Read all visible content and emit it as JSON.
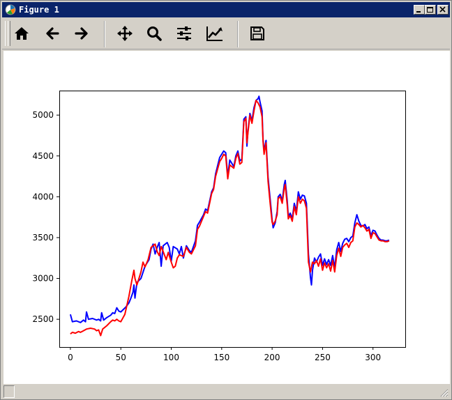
{
  "window": {
    "title": "Figure 1"
  },
  "toolbar": {
    "buttons": [
      {
        "name": "home-button",
        "icon": "home-icon"
      },
      {
        "name": "back-button",
        "icon": "arrow-left-icon"
      },
      {
        "name": "forward-button",
        "icon": "arrow-right-icon"
      },
      {
        "name": "pan-button",
        "icon": "move-icon"
      },
      {
        "name": "zoom-button",
        "icon": "magnifier-icon"
      },
      {
        "name": "configure-subplots-button",
        "icon": "sliders-icon"
      },
      {
        "name": "edit-axis-button",
        "icon": "line-chart-icon"
      },
      {
        "name": "save-button",
        "icon": "floppy-disk-icon"
      }
    ]
  },
  "chart_data": {
    "type": "line",
    "title": "",
    "xlabel": "",
    "ylabel": "",
    "xlim": [
      -11,
      332
    ],
    "ylim": [
      2160,
      5300
    ],
    "xticks": [
      0,
      50,
      100,
      150,
      200,
      250,
      300
    ],
    "yticks": [
      2500,
      3000,
      3500,
      4000,
      4500,
      5000
    ],
    "grid": false,
    "series": [
      {
        "color": "#0000ff",
        "points": [
          [
            0,
            2560
          ],
          [
            2,
            2470
          ],
          [
            6,
            2480
          ],
          [
            10,
            2460
          ],
          [
            13,
            2490
          ],
          [
            15,
            2470
          ],
          [
            16,
            2590
          ],
          [
            18,
            2500
          ],
          [
            22,
            2510
          ],
          [
            26,
            2490
          ],
          [
            28,
            2500
          ],
          [
            30,
            2480
          ],
          [
            31,
            2580
          ],
          [
            33,
            2490
          ],
          [
            36,
            2520
          ],
          [
            40,
            2550
          ],
          [
            42,
            2580
          ],
          [
            44,
            2570
          ],
          [
            46,
            2640
          ],
          [
            48,
            2600
          ],
          [
            50,
            2590
          ],
          [
            55,
            2650
          ],
          [
            58,
            2700
          ],
          [
            60,
            2760
          ],
          [
            62,
            2830
          ],
          [
            63,
            2920
          ],
          [
            64,
            2760
          ],
          [
            66,
            2950
          ],
          [
            70,
            3000
          ],
          [
            74,
            3150
          ],
          [
            78,
            3230
          ],
          [
            80,
            3360
          ],
          [
            82,
            3420
          ],
          [
            84,
            3300
          ],
          [
            86,
            3380
          ],
          [
            88,
            3440
          ],
          [
            90,
            3150
          ],
          [
            92,
            3400
          ],
          [
            96,
            3440
          ],
          [
            98,
            3380
          ],
          [
            100,
            3210
          ],
          [
            102,
            3390
          ],
          [
            106,
            3360
          ],
          [
            108,
            3300
          ],
          [
            110,
            3390
          ],
          [
            112,
            3250
          ],
          [
            115,
            3400
          ],
          [
            118,
            3340
          ],
          [
            120,
            3320
          ],
          [
            124,
            3460
          ],
          [
            126,
            3650
          ],
          [
            128,
            3690
          ],
          [
            132,
            3780
          ],
          [
            134,
            3850
          ],
          [
            136,
            3830
          ],
          [
            140,
            4060
          ],
          [
            142,
            4110
          ],
          [
            144,
            4280
          ],
          [
            146,
            4380
          ],
          [
            148,
            4480
          ],
          [
            150,
            4520
          ],
          [
            152,
            4560
          ],
          [
            154,
            4540
          ],
          [
            156,
            4250
          ],
          [
            158,
            4450
          ],
          [
            160,
            4410
          ],
          [
            162,
            4370
          ],
          [
            164,
            4500
          ],
          [
            166,
            4560
          ],
          [
            168,
            4440
          ],
          [
            170,
            4460
          ],
          [
            172,
            4950
          ],
          [
            174,
            4980
          ],
          [
            175,
            4620
          ],
          [
            176,
            4800
          ],
          [
            178,
            5020
          ],
          [
            180,
            4930
          ],
          [
            182,
            5090
          ],
          [
            184,
            5180
          ],
          [
            186,
            5200
          ],
          [
            187,
            5230
          ],
          [
            188,
            5160
          ],
          [
            190,
            5050
          ],
          [
            191,
            4700
          ],
          [
            192,
            4560
          ],
          [
            194,
            4690
          ],
          [
            196,
            4240
          ],
          [
            198,
            3980
          ],
          [
            199,
            3850
          ],
          [
            200,
            3720
          ],
          [
            201,
            3620
          ],
          [
            203,
            3680
          ],
          [
            205,
            3820
          ],
          [
            206,
            4000
          ],
          [
            208,
            4030
          ],
          [
            210,
            3950
          ],
          [
            212,
            4150
          ],
          [
            213,
            4200
          ],
          [
            215,
            3950
          ],
          [
            216,
            3760
          ],
          [
            218,
            3800
          ],
          [
            220,
            3730
          ],
          [
            222,
            3920
          ],
          [
            224,
            3820
          ],
          [
            226,
            4060
          ],
          [
            228,
            3970
          ],
          [
            230,
            4020
          ],
          [
            232,
            4010
          ],
          [
            234,
            3920
          ],
          [
            236,
            3300
          ],
          [
            238,
            3010
          ],
          [
            239,
            2920
          ],
          [
            240,
            3100
          ],
          [
            242,
            3250
          ],
          [
            244,
            3200
          ],
          [
            246,
            3260
          ],
          [
            248,
            3300
          ],
          [
            250,
            3160
          ],
          [
            252,
            3240
          ],
          [
            254,
            3170
          ],
          [
            256,
            3230
          ],
          [
            258,
            3160
          ],
          [
            260,
            3280
          ],
          [
            262,
            3130
          ],
          [
            264,
            3350
          ],
          [
            266,
            3440
          ],
          [
            268,
            3330
          ],
          [
            270,
            3430
          ],
          [
            272,
            3480
          ],
          [
            274,
            3490
          ],
          [
            276,
            3450
          ],
          [
            278,
            3500
          ],
          [
            280,
            3520
          ],
          [
            282,
            3680
          ],
          [
            284,
            3780
          ],
          [
            286,
            3700
          ],
          [
            288,
            3650
          ],
          [
            290,
            3640
          ],
          [
            292,
            3660
          ],
          [
            294,
            3610
          ],
          [
            296,
            3630
          ],
          [
            298,
            3520
          ],
          [
            300,
            3590
          ],
          [
            302,
            3580
          ],
          [
            304,
            3530
          ],
          [
            306,
            3490
          ],
          [
            308,
            3470
          ],
          [
            310,
            3470
          ],
          [
            312,
            3460
          ],
          [
            314,
            3460
          ],
          [
            316,
            3470
          ]
        ]
      },
      {
        "color": "#ff0000",
        "points": [
          [
            0,
            2320
          ],
          [
            2,
            2340
          ],
          [
            5,
            2330
          ],
          [
            8,
            2350
          ],
          [
            10,
            2340
          ],
          [
            13,
            2360
          ],
          [
            16,
            2380
          ],
          [
            20,
            2390
          ],
          [
            24,
            2380
          ],
          [
            26,
            2360
          ],
          [
            28,
            2370
          ],
          [
            30,
            2300
          ],
          [
            32,
            2380
          ],
          [
            36,
            2420
          ],
          [
            40,
            2470
          ],
          [
            42,
            2490
          ],
          [
            44,
            2480
          ],
          [
            46,
            2500
          ],
          [
            48,
            2480
          ],
          [
            50,
            2470
          ],
          [
            54,
            2560
          ],
          [
            58,
            2780
          ],
          [
            61,
            2980
          ],
          [
            63,
            3100
          ],
          [
            64,
            3000
          ],
          [
            66,
            2920
          ],
          [
            70,
            3080
          ],
          [
            72,
            3200
          ],
          [
            74,
            3140
          ],
          [
            77,
            3230
          ],
          [
            80,
            3380
          ],
          [
            84,
            3420
          ],
          [
            86,
            3330
          ],
          [
            88,
            3280
          ],
          [
            90,
            3390
          ],
          [
            92,
            3330
          ],
          [
            95,
            3230
          ],
          [
            97,
            3320
          ],
          [
            100,
            3200
          ],
          [
            102,
            3130
          ],
          [
            104,
            3150
          ],
          [
            106,
            3250
          ],
          [
            108,
            3290
          ],
          [
            112,
            3270
          ],
          [
            115,
            3380
          ],
          [
            118,
            3320
          ],
          [
            120,
            3300
          ],
          [
            124,
            3400
          ],
          [
            126,
            3600
          ],
          [
            128,
            3640
          ],
          [
            132,
            3760
          ],
          [
            134,
            3820
          ],
          [
            136,
            3800
          ],
          [
            140,
            4040
          ],
          [
            142,
            4090
          ],
          [
            144,
            4250
          ],
          [
            146,
            4340
          ],
          [
            148,
            4430
          ],
          [
            150,
            4470
          ],
          [
            152,
            4520
          ],
          [
            154,
            4500
          ],
          [
            156,
            4220
          ],
          [
            158,
            4390
          ],
          [
            160,
            4370
          ],
          [
            162,
            4350
          ],
          [
            164,
            4470
          ],
          [
            166,
            4530
          ],
          [
            168,
            4400
          ],
          [
            170,
            4420
          ],
          [
            172,
            4920
          ],
          [
            174,
            4960
          ],
          [
            175,
            4660
          ],
          [
            176,
            4780
          ],
          [
            178,
            5000
          ],
          [
            180,
            4900
          ],
          [
            182,
            5050
          ],
          [
            184,
            5180
          ],
          [
            186,
            5150
          ],
          [
            188,
            5100
          ],
          [
            190,
            4980
          ],
          [
            191,
            4680
          ],
          [
            192,
            4520
          ],
          [
            194,
            4660
          ],
          [
            196,
            4190
          ],
          [
            198,
            3930
          ],
          [
            199,
            3800
          ],
          [
            200,
            3690
          ],
          [
            201,
            3660
          ],
          [
            203,
            3700
          ],
          [
            205,
            3780
          ],
          [
            206,
            3980
          ],
          [
            208,
            4000
          ],
          [
            210,
            3920
          ],
          [
            212,
            4100
          ],
          [
            213,
            4150
          ],
          [
            215,
            3900
          ],
          [
            216,
            3730
          ],
          [
            218,
            3770
          ],
          [
            220,
            3700
          ],
          [
            222,
            3880
          ],
          [
            224,
            3780
          ],
          [
            226,
            4000
          ],
          [
            228,
            3920
          ],
          [
            230,
            3970
          ],
          [
            232,
            3950
          ],
          [
            234,
            3860
          ],
          [
            236,
            3200
          ],
          [
            238,
            3080
          ],
          [
            240,
            3200
          ],
          [
            242,
            3180
          ],
          [
            244,
            3220
          ],
          [
            246,
            3150
          ],
          [
            248,
            3240
          ],
          [
            250,
            3100
          ],
          [
            252,
            3190
          ],
          [
            254,
            3130
          ],
          [
            256,
            3180
          ],
          [
            258,
            3090
          ],
          [
            260,
            3220
          ],
          [
            262,
            3080
          ],
          [
            264,
            3280
          ],
          [
            266,
            3370
          ],
          [
            268,
            3270
          ],
          [
            270,
            3380
          ],
          [
            272,
            3410
          ],
          [
            274,
            3430
          ],
          [
            276,
            3380
          ],
          [
            278,
            3440
          ],
          [
            280,
            3460
          ],
          [
            282,
            3630
          ],
          [
            284,
            3680
          ],
          [
            286,
            3660
          ],
          [
            288,
            3630
          ],
          [
            290,
            3650
          ],
          [
            292,
            3620
          ],
          [
            294,
            3580
          ],
          [
            296,
            3600
          ],
          [
            298,
            3490
          ],
          [
            300,
            3560
          ],
          [
            302,
            3550
          ],
          [
            304,
            3510
          ],
          [
            306,
            3470
          ],
          [
            308,
            3460
          ],
          [
            310,
            3460
          ],
          [
            312,
            3450
          ],
          [
            314,
            3450
          ],
          [
            316,
            3460
          ]
        ]
      }
    ]
  }
}
